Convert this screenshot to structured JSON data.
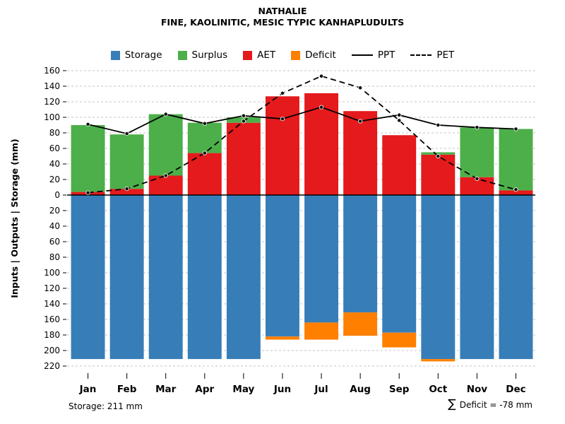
{
  "header": {
    "title": "NATHALIE",
    "subtitle": "FINE, KAOLINITIC, MESIC TYPIC KANHAPLUDULTS"
  },
  "legend": {
    "items": [
      {
        "label": "Storage",
        "swatch": "box",
        "color": "#377EB8"
      },
      {
        "label": "Surplus",
        "swatch": "box",
        "color": "#4DAF4A"
      },
      {
        "label": "AET",
        "swatch": "box",
        "color": "#E41A1C"
      },
      {
        "label": "Deficit",
        "swatch": "box",
        "color": "#FF7F00"
      },
      {
        "label": "PPT",
        "swatch": "solid-line",
        "color": "#000000"
      },
      {
        "label": "PET",
        "swatch": "dashed-line",
        "color": "#000000"
      }
    ]
  },
  "chart_data": {
    "type": "bar",
    "title": "NATHALIE",
    "subtitle": "FINE, KAOLINITIC, MESIC TYPIC KANHAPLUDULTS",
    "categories": [
      "Jan",
      "Feb",
      "Mar",
      "Apr",
      "May",
      "Jun",
      "Jul",
      "Aug",
      "Sep",
      "Oct",
      "Nov",
      "Dec"
    ],
    "series": [
      {
        "name": "AET",
        "type": "bar",
        "stack": "above-zero",
        "color": "#E41A1C",
        "values": [
          4,
          8,
          25,
          54,
          93,
          127,
          131,
          108,
          77,
          52,
          23,
          6
        ]
      },
      {
        "name": "Surplus",
        "type": "bar",
        "stack": "above-zero",
        "color": "#4DAF4A",
        "values": [
          86,
          70,
          79,
          39,
          7,
          0,
          0,
          0,
          0,
          3,
          64,
          79
        ]
      },
      {
        "name": "Storage",
        "type": "bar",
        "stack": "below-zero",
        "color": "#377EB8",
        "values": [
          211,
          211,
          211,
          211,
          211,
          182,
          164,
          151,
          177,
          211,
          211,
          211
        ]
      },
      {
        "name": "Deficit",
        "type": "bar",
        "stack": "below-zero",
        "color": "#FF7F00",
        "values": [
          0,
          0,
          0,
          0,
          0,
          4,
          22,
          30,
          19,
          3,
          0,
          0
        ]
      },
      {
        "name": "PPT",
        "type": "line",
        "line_style": "solid",
        "color": "#000000",
        "values": [
          91,
          79,
          104,
          92,
          102,
          98,
          113,
          95,
          103,
          90,
          87,
          85
        ]
      },
      {
        "name": "PET",
        "type": "line",
        "line_style": "dashed",
        "color": "#000000",
        "values": [
          3,
          8,
          25,
          54,
          95,
          131,
          153,
          138,
          96,
          50,
          21,
          7
        ]
      }
    ],
    "ylabel": "Inputs | Outputs | Storage   (mm)",
    "yticks_upper": [
      160,
      140,
      120,
      100,
      80,
      60,
      40,
      20,
      0
    ],
    "yticks_lower": [
      20,
      40,
      60,
      80,
      100,
      120,
      140,
      160,
      180,
      200,
      220
    ],
    "ylim_upper": 160,
    "ylim_lower": 220,
    "grid": "dashed",
    "legend_position": "top"
  },
  "footer": {
    "storage_note": "Storage: 211 mm",
    "sum_symbol": "∑",
    "deficit_note": "Deficit = -78 mm"
  }
}
